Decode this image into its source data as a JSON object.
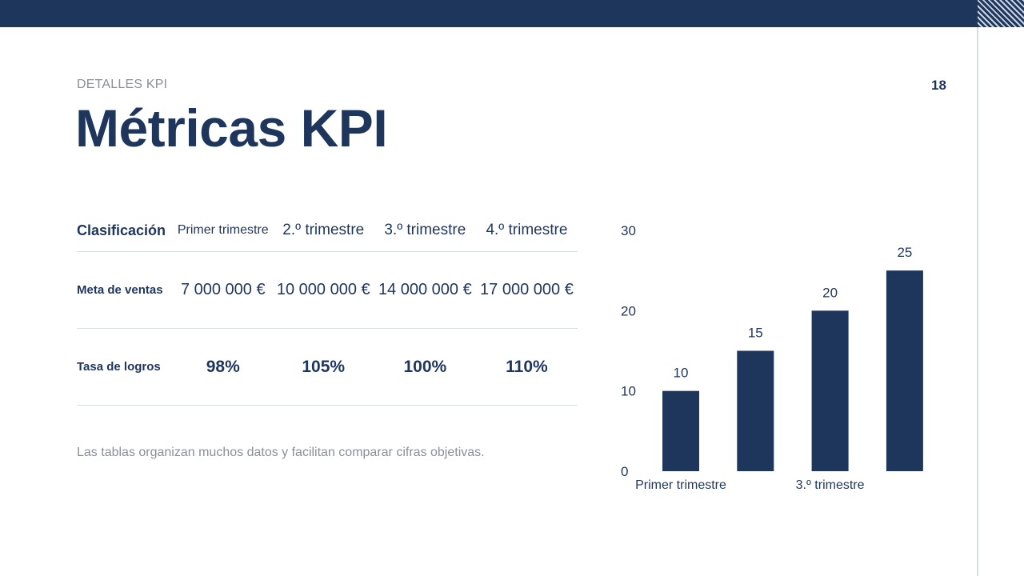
{
  "header": {
    "eyebrow": "DETALLES KPI",
    "page_number": "18",
    "title": "Métricas KPI"
  },
  "table": {
    "headers": [
      "Clasificación",
      "Primer trimestre",
      "2.º trimestre",
      "3.º trimestre",
      "4.º trimestre"
    ],
    "rows": [
      {
        "label": "Meta de ventas",
        "values": [
          "7 000 000 €",
          "10 000 000 €",
          "14 000 000 €",
          "17 000 000 €"
        ]
      },
      {
        "label": "Tasa de logros",
        "values": [
          "98%",
          "105%",
          "100%",
          "110%"
        ]
      }
    ]
  },
  "note": "Las tablas organizan muchos datos y facilitan comparar cifras objetivas.",
  "colors": {
    "accent": "#1f365c",
    "muted": "#8a8f99"
  },
  "chart_data": {
    "type": "bar",
    "categories": [
      "Primer trimestre",
      "2.º trimestre",
      "3.º trimestre",
      "4.º trimestre"
    ],
    "visible_x_labels": [
      "Primer trimestre",
      "3.º trimestre"
    ],
    "values": [
      10,
      15,
      20,
      25
    ],
    "data_labels": [
      "10",
      "15",
      "20",
      "25"
    ],
    "yticks": [
      "0",
      "10",
      "20",
      "30"
    ],
    "ylim": [
      0,
      30
    ],
    "title": "",
    "xlabel": "",
    "ylabel": "",
    "grid": false,
    "legend": "none"
  }
}
